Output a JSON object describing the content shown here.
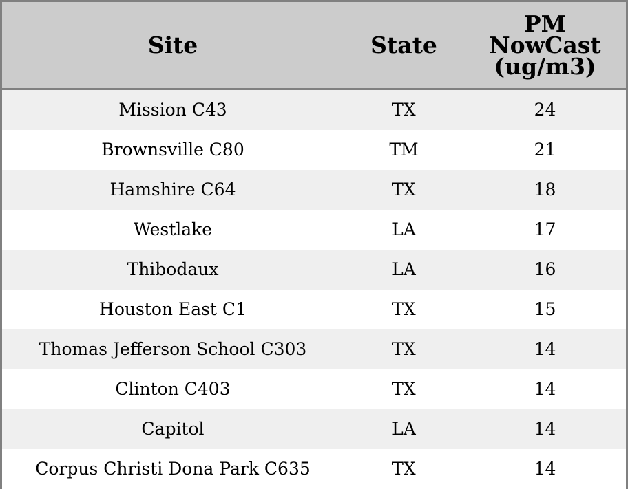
{
  "chart_data": {
    "type": "table",
    "columns": [
      "Site",
      "State",
      "PM NowCast (ug/m3)"
    ],
    "rows": [
      {
        "site": "Mission C43",
        "state": "TX",
        "pm": "24"
      },
      {
        "site": "Brownsville C80",
        "state": "TM",
        "pm": "21"
      },
      {
        "site": "Hamshire C64",
        "state": "TX",
        "pm": "18"
      },
      {
        "site": "Westlake",
        "state": "LA",
        "pm": "17"
      },
      {
        "site": "Thibodaux",
        "state": "LA",
        "pm": "16"
      },
      {
        "site": "Houston East C1",
        "state": "TX",
        "pm": "15"
      },
      {
        "site": "Thomas Jefferson School C303",
        "state": "TX",
        "pm": "14"
      },
      {
        "site": "Clinton C403",
        "state": "TX",
        "pm": "14"
      },
      {
        "site": "Capitol",
        "state": "LA",
        "pm": "14"
      },
      {
        "site": "Corpus Christi Dona Park C635",
        "state": "TX",
        "pm": "14"
      }
    ]
  },
  "colors": {
    "header_bg": "#cccccc",
    "row_alt_bg": "#efefef",
    "row_bg": "#ffffff",
    "border": "#808080"
  }
}
